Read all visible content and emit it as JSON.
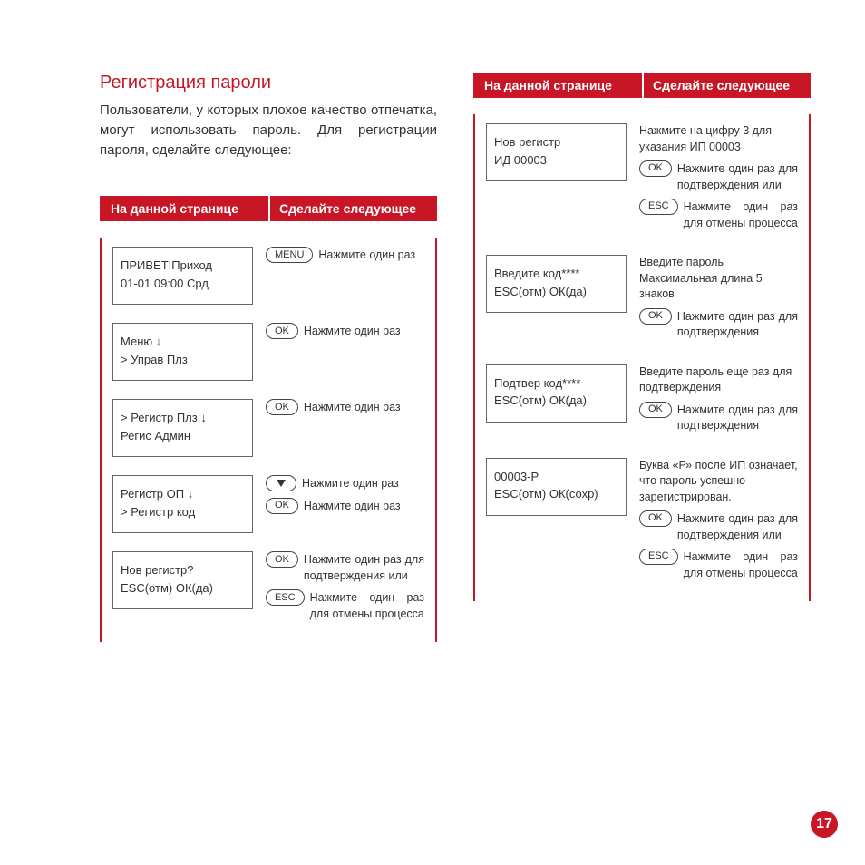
{
  "colors": {
    "accent": "#c81626",
    "text": "#333333",
    "bg": "#ffffff",
    "border": "#666666"
  },
  "page_number": "17",
  "section_title": "Регистрация пароли",
  "intro": "Пользователи, у которых плохое качество отпечатка, могут использовать пароль. Для регистрации пароля, сделайте следующее:",
  "header": {
    "col1": "На данной странице",
    "col2": "Сделайте следующее"
  },
  "left_steps": [
    {
      "screen": "ПРИВЕТ!Приход\n01-01 09:00 Срд",
      "actions": [
        {
          "btn": "MENU",
          "text": "Нажмите один раз"
        }
      ]
    },
    {
      "screen": "Меню               ↓\n>  Управ Плз",
      "actions": [
        {
          "btn": "OK",
          "text": "Нажмите один раз"
        }
      ]
    },
    {
      "screen": ">  Регистр Плз ↓\n    Регис Админ",
      "actions": [
        {
          "btn": "OK",
          "text": "Нажмите один раз"
        }
      ]
    },
    {
      "screen": "    Регистр ОП  ↓\n>  Регистр код",
      "actions": [
        {
          "btn_type": "arrow",
          "text": "Нажмите один раз"
        },
        {
          "btn": "OK",
          "text": "Нажмите один раз"
        }
      ]
    },
    {
      "screen": "Нов регистр?\nESC(отм) ОК(да)",
      "actions": [
        {
          "btn": "OK",
          "text": "Нажмите один раз для подтверждения или"
        },
        {
          "btn": "ESC",
          "text": "Нажмите один раз для отмены процесса"
        }
      ]
    }
  ],
  "right_steps": [
    {
      "screen": "Нов регистр\nИД 00003",
      "pretext": "Нажмите на цифру 3 для указания ИП 00003",
      "actions": [
        {
          "btn": "OK",
          "text": "Нажмите один раз для подтверждения или"
        },
        {
          "btn": "ESC",
          "text": "Нажмите один раз для отмены процесса"
        }
      ]
    },
    {
      "screen": "Введите код****\nESC(отм) ОК(да)",
      "pretext": "Введите пароль\nМаксимальная длина 5 знаков",
      "actions": [
        {
          "btn": "OK",
          "text": "Нажмите один раз для подтверждения"
        }
      ]
    },
    {
      "screen": "Подтвер код****\nESC(отм) ОК(да)",
      "pretext": "Введите пароль еще раз для подтверждения",
      "actions": [
        {
          "btn": "OK",
          "text": "Нажмите один раз для подтверждения"
        }
      ]
    },
    {
      "screen": "00003-Р\nESC(отм) ОК(сохр)",
      "pretext": "Буква «Р» после ИП означает, что пароль успешно зарегистрирован.",
      "actions": [
        {
          "btn": "OK",
          "text": "Нажмите один раз для подтверждения или"
        },
        {
          "btn": "ESC",
          "text": "Нажмите один раз для отмены процесса"
        }
      ]
    }
  ]
}
